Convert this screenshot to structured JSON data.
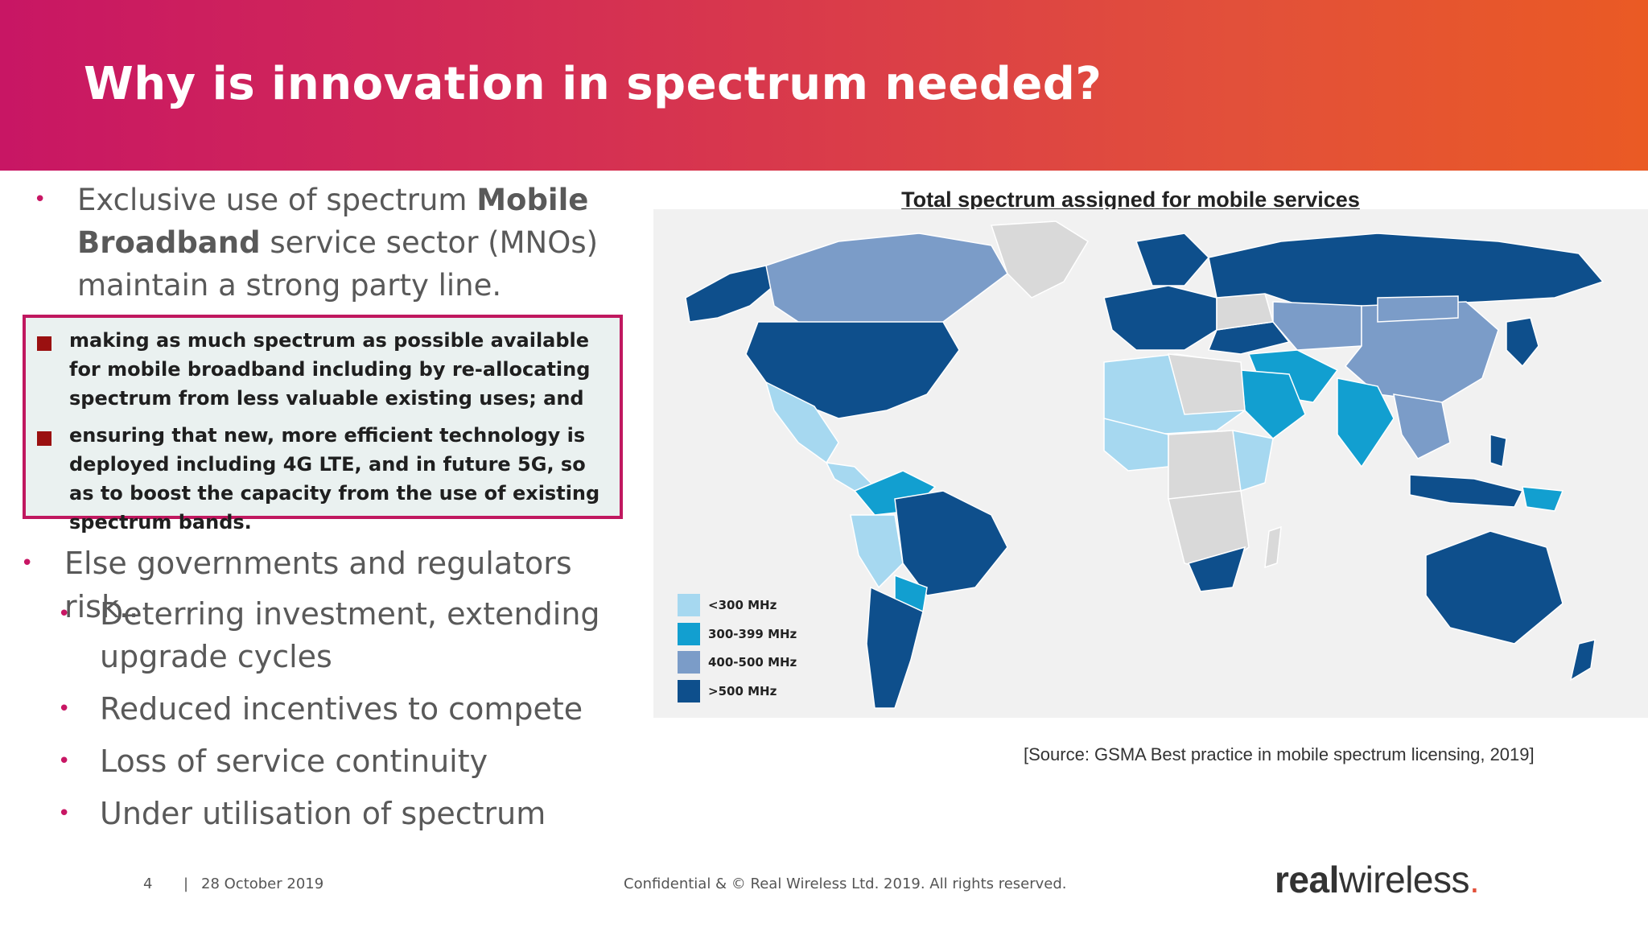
{
  "slide": {
    "title": "Why is innovation in spectrum needed?",
    "bullet1": {
      "pre": "Exclusive use of spectrum ",
      "bold": "Mobile Broadband",
      "post": " service sector (MNOs) maintain a strong party line."
    },
    "quote_items": [
      "making as much spectrum as possible available for mobile broadband including by re-allocating spectrum from less valuable existing uses; and",
      "ensuring that new, more efficient technology is deployed including 4G LTE, and in future 5G, so as to boost the capacity from the use of existing spectrum bands."
    ],
    "bullet2": "Else governments and regulators risk..",
    "sub_bullets": [
      "Deterring investment, extending upgrade cycles",
      "Reduced incentives to compete",
      "Loss of service continuity",
      "Under utilisation of spectrum"
    ],
    "bullet_glyph": "•"
  },
  "map": {
    "title": "Total spectrum assigned for mobile services",
    "legend": [
      {
        "label": "<300 MHz",
        "color": "#a6d8f0"
      },
      {
        "label": "300-399 MHz",
        "color": "#129fd0"
      },
      {
        "label": "400-500 MHz",
        "color": "#7b9cc8"
      },
      {
        "label": ">500 MHz",
        "color": "#0e4f8c"
      }
    ],
    "no_data_color": "#d9d9d9",
    "source": "[Source: GSMA Best practice in mobile spectrum licensing, 2019]"
  },
  "footer": {
    "page": "4",
    "separator": "|",
    "date": "28 October 2019",
    "confidential": "Confidential & © Real Wireless Ltd. 2019. All rights reserved.",
    "brand_bold": "real",
    "brand_light": "wireless",
    "brand_dot": "."
  }
}
